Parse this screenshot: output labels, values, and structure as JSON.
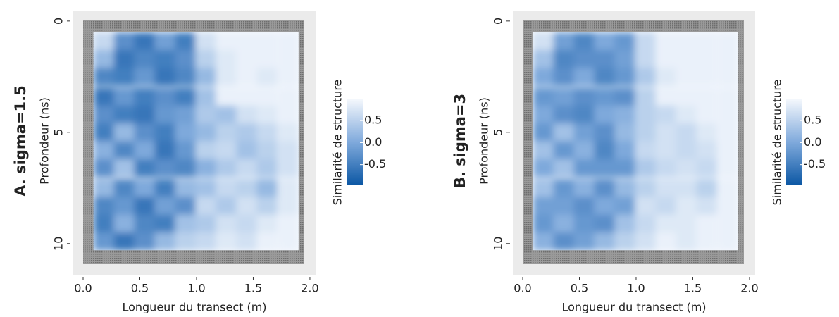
{
  "chart_data": [
    {
      "type": "heatmap",
      "title": "A. sigma=1.5",
      "x_label": "Longueur du transect (m)",
      "y_label": "Profondeur (ns)",
      "colorbar_label": "Similarité de structure",
      "x": [
        0.18,
        0.36,
        0.54,
        0.72,
        0.9,
        1.08,
        1.26,
        1.44,
        1.62,
        1.81
      ],
      "y": [
        0.9,
        1.7,
        2.5,
        3.4,
        4.2,
        5.0,
        5.8,
        6.6,
        7.5,
        8.3,
        9.1,
        9.9
      ],
      "z": [
        [
          0.6,
          -0.3,
          -0.6,
          -0.1,
          -0.5,
          0.7,
          0.9,
          0.9,
          0.9,
          0.9
        ],
        [
          0.2,
          -0.6,
          -0.4,
          -0.5,
          -0.3,
          0.5,
          0.8,
          0.9,
          0.9,
          0.9
        ],
        [
          -0.4,
          -0.5,
          -0.2,
          -0.6,
          -0.4,
          0.2,
          0.8,
          0.9,
          0.8,
          0.9
        ],
        [
          -0.6,
          -0.2,
          -0.5,
          -0.3,
          -0.5,
          0.3,
          0.9,
          0.9,
          0.9,
          0.9
        ],
        [
          -0.3,
          -0.5,
          -0.6,
          -0.2,
          -0.1,
          0.4,
          0.3,
          0.7,
          0.8,
          0.9
        ],
        [
          -0.5,
          0.2,
          -0.3,
          -0.5,
          0.0,
          0.2,
          0.5,
          0.4,
          0.6,
          0.8
        ],
        [
          0.1,
          -0.4,
          0.0,
          -0.6,
          -0.2,
          0.5,
          0.6,
          0.3,
          0.5,
          0.7
        ],
        [
          -0.3,
          0.3,
          -0.5,
          -0.3,
          -0.4,
          0.1,
          0.4,
          0.6,
          0.4,
          0.7
        ],
        [
          0.2,
          -0.4,
          0.0,
          -0.5,
          0.2,
          0.3,
          0.6,
          0.5,
          0.2,
          0.8
        ],
        [
          -0.4,
          -0.2,
          -0.6,
          -0.1,
          -0.3,
          0.6,
          0.4,
          0.7,
          0.5,
          0.8
        ],
        [
          -0.5,
          0.1,
          -0.4,
          -0.5,
          0.3,
          0.4,
          0.7,
          0.6,
          0.8,
          0.9
        ],
        [
          -0.2,
          -0.6,
          -0.3,
          0.2,
          0.5,
          0.6,
          0.8,
          0.7,
          0.9,
          0.9
        ]
      ],
      "xlim": [
        -0.087,
        2.05
      ],
      "ylim": [
        -0.47,
        11.4
      ],
      "y_inverted": true,
      "xticks": [
        {
          "value": 0,
          "label": "0.0"
        },
        0.5,
        {
          "value": 1,
          "label": "1.0"
        },
        1.5,
        {
          "value": 2,
          "label": "2.0"
        }
      ],
      "yticks": [
        0,
        5,
        10
      ],
      "clim": [
        -0.97,
        1.0
      ],
      "colorscale": [
        "#0b57a4",
        "#80aadc",
        "#f6f9fd"
      ],
      "cticks": [
        0.5,
        {
          "value": 0,
          "label": "0.0"
        },
        -0.5
      ]
    },
    {
      "type": "heatmap",
      "title": "B. sigma=3",
      "x_label": "Longueur du transect (m)",
      "y_label": "Profondeur (ns)",
      "colorbar_label": "Similarité de structure",
      "x": [
        0.18,
        0.36,
        0.54,
        0.72,
        0.9,
        1.08,
        1.26,
        1.44,
        1.62,
        1.81
      ],
      "y": [
        0.9,
        1.7,
        2.5,
        3.4,
        4.2,
        5.0,
        5.8,
        6.6,
        7.5,
        8.3,
        9.1,
        9.9
      ],
      "z": [
        [
          0.7,
          -0.1,
          -0.4,
          0.0,
          -0.2,
          0.6,
          0.9,
          0.9,
          0.9,
          0.9
        ],
        [
          0.3,
          -0.4,
          -0.3,
          -0.3,
          -0.1,
          0.6,
          0.9,
          0.9,
          0.9,
          0.9
        ],
        [
          0.0,
          -0.3,
          0.0,
          -0.4,
          -0.2,
          0.4,
          0.8,
          0.9,
          0.9,
          0.9
        ],
        [
          -0.2,
          -0.1,
          -0.3,
          -0.2,
          -0.3,
          0.5,
          0.9,
          0.9,
          0.9,
          0.9
        ],
        [
          0.0,
          -0.3,
          -0.4,
          0.0,
          0.1,
          0.5,
          0.6,
          0.8,
          0.9,
          0.9
        ],
        [
          -0.2,
          0.3,
          -0.1,
          -0.3,
          0.2,
          0.5,
          0.7,
          0.6,
          0.8,
          0.9
        ],
        [
          0.3,
          -0.2,
          0.1,
          -0.4,
          0.0,
          0.6,
          0.7,
          0.6,
          0.7,
          0.9
        ],
        [
          0.0,
          0.3,
          -0.2,
          -0.2,
          -0.2,
          0.4,
          0.6,
          0.7,
          0.6,
          0.9
        ],
        [
          0.3,
          -0.2,
          0.1,
          -0.3,
          0.2,
          0.5,
          0.7,
          0.7,
          0.5,
          0.9
        ],
        [
          -0.1,
          -0.1,
          -0.3,
          0.0,
          -0.1,
          0.7,
          0.6,
          0.8,
          0.7,
          0.9
        ],
        [
          -0.2,
          0.1,
          -0.2,
          -0.3,
          0.3,
          0.6,
          0.8,
          0.8,
          0.9,
          0.9
        ],
        [
          0.1,
          -0.3,
          -0.1,
          0.2,
          0.5,
          0.7,
          0.9,
          0.8,
          0.9,
          0.9
        ]
      ],
      "xlim": [
        -0.087,
        2.05
      ],
      "ylim": [
        -0.47,
        11.4
      ],
      "y_inverted": true,
      "xticks": [
        {
          "value": 0,
          "label": "0.0"
        },
        0.5,
        {
          "value": 1,
          "label": "1.0"
        },
        1.5,
        {
          "value": 2,
          "label": "2.0"
        }
      ],
      "yticks": [
        0,
        5,
        10
      ],
      "clim": [
        -0.97,
        1.0
      ],
      "colorscale": [
        "#0b57a4",
        "#80aadc",
        "#f6f9fd"
      ],
      "cticks": [
        0.5,
        {
          "value": 0,
          "label": "0.0"
        },
        -0.5
      ]
    }
  ]
}
